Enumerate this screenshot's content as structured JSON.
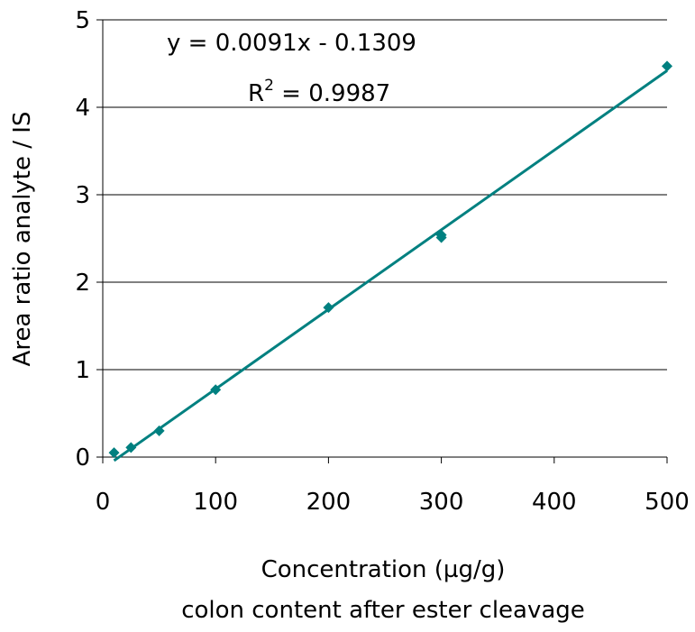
{
  "chart_data": {
    "type": "scatter",
    "x_label": "Concentration (µg/g)",
    "x_label_2": "colon content after ester cleavage",
    "y_label": "Area ratio analyte / IS",
    "series": [
      {
        "color": "#008080",
        "x": [
          10,
          25,
          50,
          100,
          200,
          300,
          300,
          500
        ],
        "values": [
          0.05,
          0.11,
          0.3,
          0.77,
          1.71,
          2.51,
          2.54,
          4.47
        ]
      }
    ],
    "trendline": {
      "slope": 0.0091,
      "intercept": -0.1309,
      "color": "#008080",
      "equation": "y = 0.0091x - 0.1309",
      "r2_prefix": "R",
      "r2_sup": "2",
      "r2_suffix": " = 0.9987"
    },
    "xlim": [
      0,
      500
    ],
    "xticks": [
      0,
      100,
      200,
      300,
      400,
      500
    ],
    "ylim": [
      0,
      5
    ],
    "yticks": [
      0,
      1,
      2,
      3,
      4,
      5
    ],
    "grid": true
  }
}
